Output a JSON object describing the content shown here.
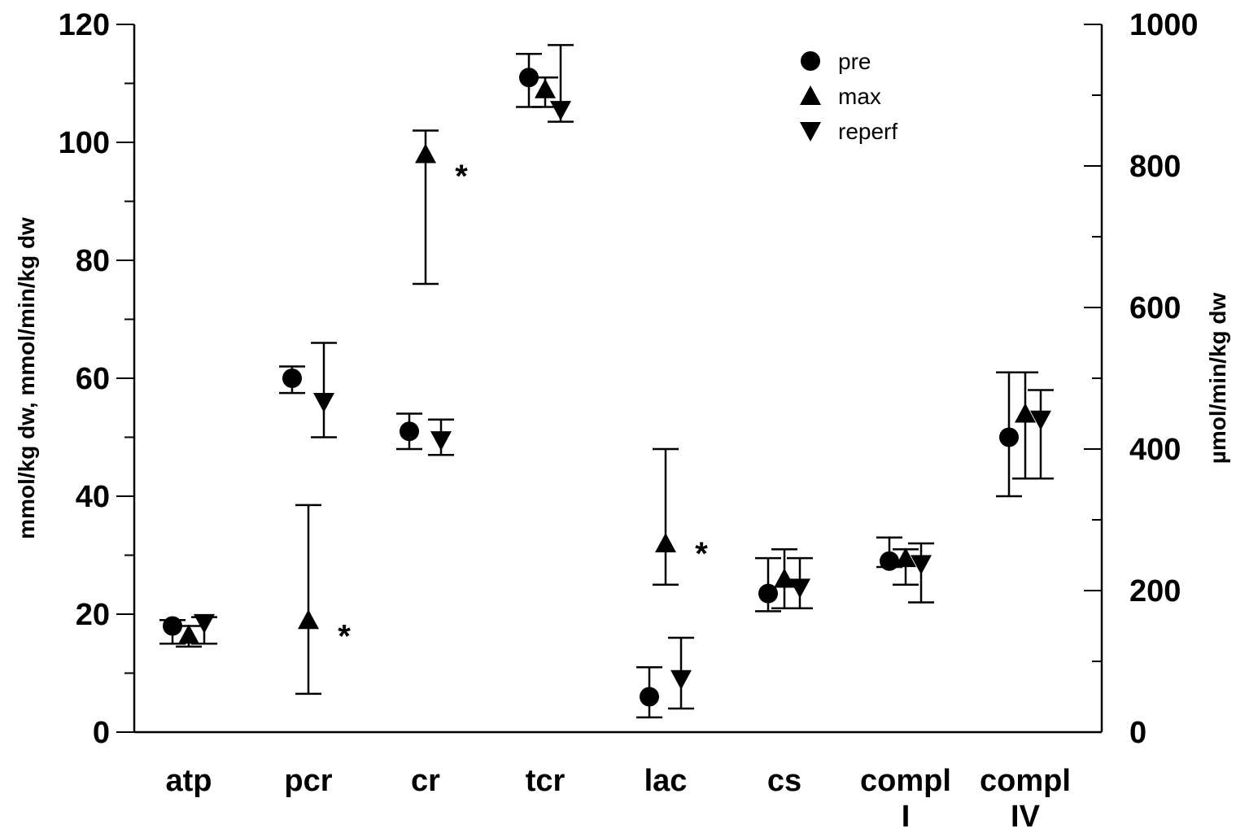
{
  "chart_data": {
    "type": "scatter",
    "categories": [
      "atp",
      "pcr",
      "cr",
      "tcr",
      "lac",
      "cs",
      "compl I",
      "compl IV"
    ],
    "category_lines": [
      [
        "atp"
      ],
      [
        "pcr"
      ],
      [
        "cr"
      ],
      [
        "tcr"
      ],
      [
        "lac"
      ],
      [
        "cs"
      ],
      [
        "compl",
        "I"
      ],
      [
        "compl",
        "IV"
      ]
    ],
    "ylabel": "mmol/kg dw, mmol/min/kg dw",
    "y2label": "µmol/min/kg dw",
    "ylim": [
      0,
      120
    ],
    "y2lim": [
      0,
      1000
    ],
    "yticks": [
      0,
      20,
      40,
      60,
      80,
      100,
      120
    ],
    "y2ticks": [
      0,
      200,
      400,
      600,
      800,
      1000
    ],
    "grid": false,
    "legend_position": "top-right",
    "series": [
      {
        "name": "pre",
        "marker": "circle",
        "points": [
          {
            "category": "atp",
            "y": 18,
            "lo": 15,
            "hi": 19
          },
          {
            "category": "pcr",
            "y": 60,
            "lo": 57.5,
            "hi": 62
          },
          {
            "category": "cr",
            "y": 51,
            "lo": 48,
            "hi": 54
          },
          {
            "category": "tcr",
            "y": 111,
            "lo": 106,
            "hi": 115
          },
          {
            "category": "lac",
            "y": 6,
            "lo": 2.5,
            "hi": 11
          },
          {
            "category": "cs",
            "y": 23.5,
            "lo": 20.5,
            "hi": 29.5
          },
          {
            "category": "compl I",
            "y": 29,
            "lo": 28,
            "hi": 33
          },
          {
            "category": "compl IV",
            "y": 50,
            "lo": 40,
            "hi": 61
          }
        ]
      },
      {
        "name": "max",
        "marker": "triangle-up",
        "points": [
          {
            "category": "atp",
            "y": 16.5,
            "lo": 14.5,
            "hi": 18
          },
          {
            "category": "pcr",
            "y": 19,
            "lo": 6.5,
            "hi": 38.5
          },
          {
            "category": "cr",
            "y": 98,
            "lo": 76,
            "hi": 102
          },
          {
            "category": "tcr",
            "y": 109,
            "lo": 106,
            "hi": 111
          },
          {
            "category": "lac",
            "y": 32,
            "lo": 25,
            "hi": 48
          },
          {
            "category": "cs",
            "y": 26,
            "lo": 21,
            "hi": 31
          },
          {
            "category": "compl I",
            "y": 29.5,
            "lo": 25,
            "hi": 31
          },
          {
            "category": "compl IV",
            "y": 54,
            "lo": 43,
            "hi": 61
          }
        ]
      },
      {
        "name": "reperf",
        "marker": "triangle-down",
        "points": [
          {
            "category": "atp",
            "y": 18.5,
            "lo": 15,
            "hi": 19.5
          },
          {
            "category": "pcr",
            "y": 56,
            "lo": 50,
            "hi": 66
          },
          {
            "category": "cr",
            "y": 49.5,
            "lo": 47,
            "hi": 53
          },
          {
            "category": "tcr",
            "y": 105.5,
            "lo": 103.5,
            "hi": 116.5
          },
          {
            "category": "lac",
            "y": 9,
            "lo": 4,
            "hi": 16
          },
          {
            "category": "cs",
            "y": 24.5,
            "lo": 21,
            "hi": 29.5
          },
          {
            "category": "compl I",
            "y": 28.5,
            "lo": 22,
            "hi": 32
          },
          {
            "category": "compl IV",
            "y": 53,
            "lo": 43,
            "hi": 58
          }
        ]
      }
    ],
    "annotations": [
      {
        "text": "*",
        "category": "pcr",
        "y": 18
      },
      {
        "text": "*",
        "category": "cr",
        "y": 96
      },
      {
        "text": "*",
        "category": "lac",
        "y": 32
      }
    ]
  }
}
